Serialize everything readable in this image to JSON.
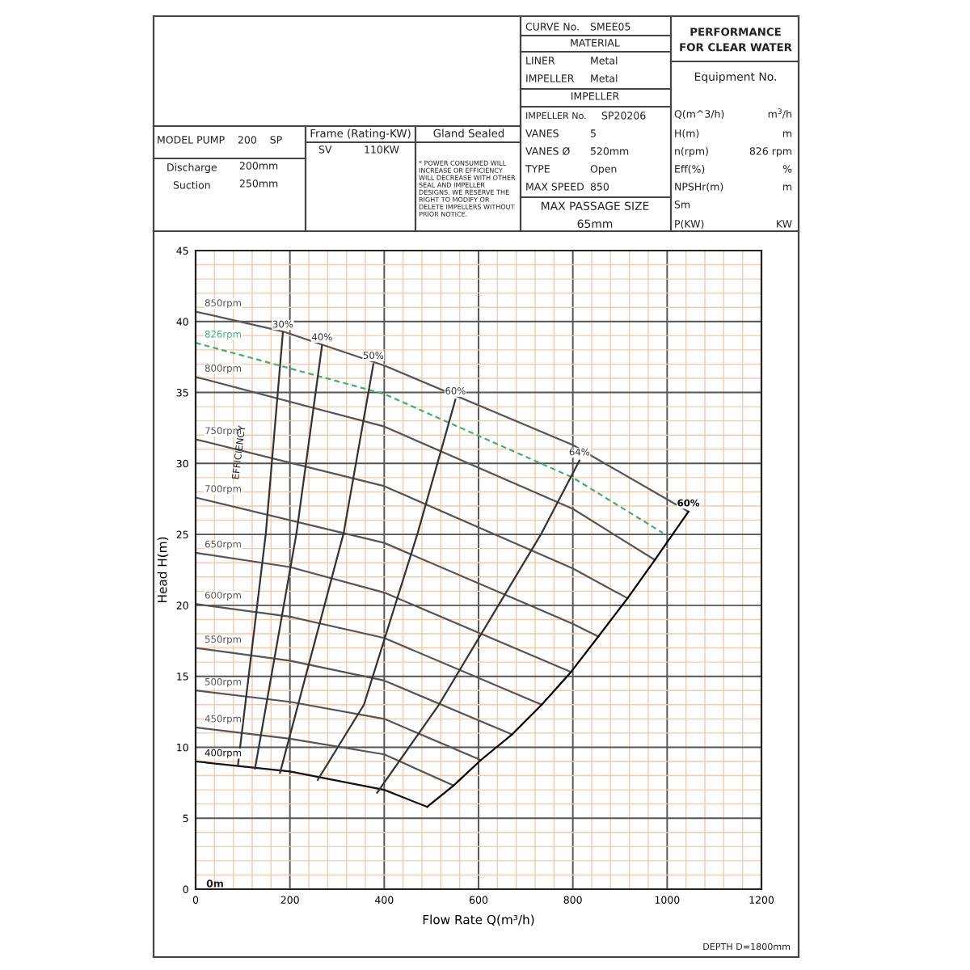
{
  "chart_data": {
    "type": "line",
    "xlabel": "Flow Rate Q(m³/h)",
    "ylabel": "Head H(m)",
    "xlim": [
      0,
      1200
    ],
    "ylim": [
      0,
      45
    ],
    "xticks": [
      0,
      {
        "value": 40,
        "label": null
      },
      {
        "value": 80,
        "label": null
      },
      {
        "value": 120,
        "label": null
      },
      {
        "value": 160,
        "label": null
      },
      200,
      {
        "value": 240,
        "label": null
      },
      {
        "value": 280,
        "label": null
      },
      {
        "value": 320,
        "label": null
      },
      {
        "value": 360,
        "label": null
      },
      400,
      {
        "value": 440,
        "label": null
      },
      {
        "value": 480,
        "label": null
      },
      {
        "value": 520,
        "label": null
      },
      {
        "value": 560,
        "label": null
      },
      600,
      {
        "value": 640,
        "label": null
      },
      {
        "value": 680,
        "label": null
      },
      {
        "value": 720,
        "label": null
      },
      {
        "value": 760,
        "label": null
      },
      800,
      {
        "value": 840,
        "label": null
      },
      {
        "value": 880,
        "label": null
      },
      {
        "value": 920,
        "label": null
      },
      {
        "value": 960,
        "label": null
      },
      1000,
      {
        "value": 1040,
        "label": null
      },
      {
        "value": 1080,
        "label": null
      },
      {
        "value": 1120,
        "label": null
      },
      {
        "value": 1160,
        "label": null
      },
      1200
    ],
    "yticks": [
      0,
      {
        "value": 1,
        "label": null
      },
      {
        "value": 2,
        "label": null
      },
      {
        "value": 3,
        "label": null
      },
      {
        "value": 4,
        "label": null
      },
      5,
      {
        "value": 6,
        "label": null
      },
      {
        "value": 7,
        "label": null
      },
      {
        "value": 8,
        "label": null
      },
      {
        "value": 9,
        "label": null
      },
      10,
      {
        "value": 11,
        "label": null
      },
      {
        "value": 12,
        "label": null
      },
      {
        "value": 13,
        "label": null
      },
      {
        "value": 14,
        "label": null
      },
      15,
      {
        "value": 16,
        "label": null
      },
      {
        "value": 17,
        "label": null
      },
      {
        "value": 18,
        "label": null
      },
      {
        "value": 19,
        "label": null
      },
      20,
      {
        "value": 21,
        "label": null
      },
      {
        "value": 22,
        "label": null
      },
      {
        "value": 23,
        "label": null
      },
      {
        "value": 24,
        "label": null
      },
      25,
      {
        "value": 26,
        "label": null
      },
      {
        "value": 27,
        "label": null
      },
      {
        "value": 28,
        "label": null
      },
      {
        "value": 29,
        "label": null
      },
      30,
      {
        "value": 31,
        "label": null
      },
      {
        "value": 32,
        "label": null
      },
      {
        "value": 33,
        "label": null
      },
      {
        "value": 34,
        "label": null
      },
      35,
      {
        "value": 36,
        "label": null
      },
      {
        "value": 37,
        "label": null
      },
      {
        "value": 38,
        "label": null
      },
      {
        "value": 39,
        "label": null
      },
      40,
      {
        "value": 41,
        "label": null
      },
      {
        "value": 42,
        "label": null
      },
      {
        "value": 43,
        "label": null
      },
      {
        "value": 44,
        "label": null
      },
      45
    ],
    "grid": true,
    "legend": false,
    "marker": "none",
    "line_style": "solid",
    "series": [
      {
        "name": "850rpm",
        "color": "#555555",
        "x": [
          0,
          185,
          400,
          800,
          1045
        ],
        "values": [
          40.7,
          39.3,
          36.9,
          31.3,
          26.6
        ]
      },
      {
        "name": "826rpm",
        "color": "#3cb371",
        "x": [
          0,
          400,
          800,
          991
        ],
        "values": [
          38.5,
          34.9,
          29.0,
          25.1
        ],
        "line_style": "dashed"
      },
      {
        "name": "800rpm",
        "color": "#555555",
        "x": [
          0,
          400,
          800,
          974
        ],
        "values": [
          36.1,
          32.6,
          26.8,
          23.2
        ]
      },
      {
        "name": "750rpm",
        "color": "#555555",
        "x": [
          0,
          400,
          800,
          916
        ],
        "values": [
          31.7,
          28.4,
          22.6,
          20.5
        ]
      },
      {
        "name": "700rpm",
        "color": "#555555",
        "x": [
          0,
          400,
          800,
          854
        ],
        "values": [
          27.6,
          24.4,
          18.7,
          17.8
        ]
      },
      {
        "name": "650rpm",
        "color": "#555555",
        "x": [
          0,
          200,
          400,
          796
        ],
        "values": [
          23.7,
          22.7,
          20.9,
          15.3
        ]
      },
      {
        "name": "600rpm",
        "color": "#555555",
        "x": [
          0,
          200,
          400,
          734
        ],
        "values": [
          20.1,
          19.2,
          17.7,
          13.0
        ]
      },
      {
        "name": "550rpm",
        "color": "#555555",
        "x": [
          0,
          200,
          400,
          671
        ],
        "values": [
          17.0,
          16.1,
          14.7,
          10.9
        ]
      },
      {
        "name": "500rpm",
        "color": "#555555",
        "x": [
          0,
          200,
          400,
          605
        ],
        "values": [
          14.0,
          13.2,
          12.0,
          9.1
        ]
      },
      {
        "name": "450rpm",
        "color": "#555555",
        "x": [
          0,
          200,
          400,
          547
        ],
        "values": [
          11.4,
          10.6,
          9.5,
          7.3
        ]
      },
      {
        "name": "400rpm",
        "color": "#111111",
        "x": [
          0,
          200,
          400,
          491
        ],
        "values": [
          9.0,
          8.3,
          7.0,
          5.8
        ]
      },
      {
        "name": "30%",
        "color": "#333333",
        "x": [
          90,
          149,
          185
        ],
        "values": [
          8.8,
          25.1,
          39.2
        ]
      },
      {
        "name": "40%",
        "color": "#333333",
        "x": [
          126,
          214,
          268
        ],
        "values": [
          8.5,
          25.1,
          38.3
        ]
      },
      {
        "name": "50%",
        "color": "#333333",
        "x": [
          179,
          314,
          377
        ],
        "values": [
          8.2,
          25.1,
          37.0
        ]
      },
      {
        "name": "60%",
        "color": "#333333",
        "x": [
          259,
          357,
          471,
          551
        ],
        "values": [
          7.7,
          13.0,
          25.1,
          34.5
        ]
      },
      {
        "name": "64%",
        "color": "#333333",
        "x": [
          385,
          516,
          734,
          814
        ],
        "values": [
          6.8,
          13.0,
          25.1,
          30.2
        ]
      },
      {
        "name": "60%",
        "color": "#000000",
        "x": [
          491,
          547,
          605,
          671,
          734,
          796,
          854,
          916,
          974,
          1045
        ],
        "values": [
          5.8,
          7.3,
          9.1,
          10.9,
          13.0,
          15.3,
          17.8,
          20.5,
          23.2,
          26.6
        ]
      }
    ],
    "annotations": [
      "CURVE No.",
      "SMEE05",
      "MATERIAL",
      "LINER",
      "Metal",
      "IMPELLER",
      "Metal",
      "IMPELLER",
      "IMPELLER No.",
      "SP20206",
      "VANES",
      "5",
      "VANES Ø",
      "520mm",
      "TYPE",
      "Open",
      "MAX SPEED",
      "850",
      "MAX PASSAGE SIZE",
      "65mm",
      "PERFORMANCE\nFOR CLEAR WATER",
      "Equipment No.",
      "Q(m^3/h)",
      "m$^{3}$/h",
      "H(m)",
      "m",
      "n(rpm)",
      "826 rpm",
      "Eff(%)",
      "%",
      "NPSHr(m)",
      "m",
      "Sm",
      "P(KW)",
      "KW",
      "MODEL PUMP    200    SP",
      "Discharge",
      "200mm",
      "Suction",
      "250mm",
      "Frame (Rating-KW)",
      "SV",
      "110KW",
      "Gland Sealed",
      "* POWER CONSUMED WILL\nINCREASE OR EFFICIENCY\nWILL DECREASE WITH OTHER\nSEAL AND IMPELLER\nDESIGNS. WE RESERVE THE\nRIGHT TO MODIFY OR\nDELETE IMPELLERS WITHOUT\nPRIOR NOTICE.",
      "DEPTH D=1800mm",
      "EFFICIENCY",
      "0m"
    ]
  }
}
